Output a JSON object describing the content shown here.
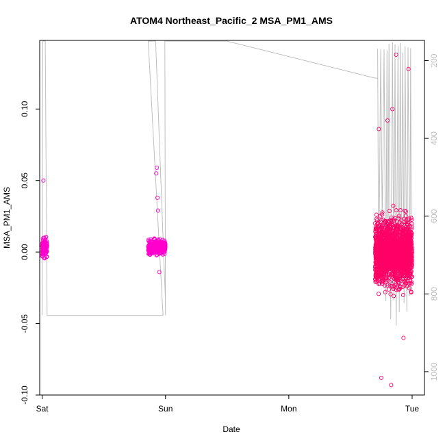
{
  "chart_data": {
    "type": "scatter",
    "title": "ATOM4 Northeast_Pacific_2 MSA_PM1_AMS",
    "xlabel": "Date",
    "ylabel": "MSA_PM1_AMS",
    "xlim": [
      -0.02,
      3.1
    ],
    "ylim": [
      -0.1,
      0.148
    ],
    "x_ticks": [
      0,
      1,
      2,
      3
    ],
    "x_tick_labels": [
      "Sat",
      "Sun",
      "Mon",
      "Tue"
    ],
    "y_ticks": [
      -0.1,
      -0.05,
      0.0,
      0.05,
      0.1
    ],
    "y_tick_labels": [
      "-0.10",
      "-0.05",
      "0.00",
      "0.05",
      "0.10"
    ],
    "right_axis": {
      "description": "altitude trace (grey line), inverted axis",
      "lim": [
        148,
        1060
      ],
      "ticks": [
        200,
        400,
        600,
        800,
        1000
      ],
      "tick_labels": [
        "200",
        "400",
        "600",
        "800",
        "1000"
      ],
      "color": "#bebebe"
    },
    "grid": false,
    "legend": "none",
    "colors": {
      "points_early": "#ff00cc",
      "points_late": "#ff0066",
      "altitude_line": "#bebebe"
    },
    "clusters": [
      {
        "x_range": [
          0.0,
          0.04
        ],
        "y_range": [
          -0.01,
          0.016
        ],
        "n": 150,
        "outliers": [
          [
            0.01,
            0.05
          ]
        ]
      },
      {
        "x_range": [
          0.86,
          1.0
        ],
        "y_range": [
          -0.008,
          0.014
        ],
        "n": 400,
        "outliers": [
          [
            0.93,
            0.059
          ],
          [
            0.925,
            0.055
          ],
          [
            0.935,
            0.038
          ],
          [
            0.94,
            0.029
          ],
          [
            0.95,
            -0.014
          ]
        ]
      },
      {
        "x_range": [
          2.7,
          3.0
        ],
        "y_range": [
          -0.05,
          0.05
        ],
        "n": 1800,
        "outliers": [
          [
            2.73,
            0.086
          ],
          [
            2.8,
            0.092
          ],
          [
            2.83,
            -0.093
          ],
          [
            2.87,
            0.138
          ],
          [
            2.97,
            0.128
          ],
          [
            2.75,
            -0.088
          ],
          [
            2.84,
            0.1
          ],
          [
            2.93,
            -0.06
          ]
        ]
      }
    ],
    "altitude": [
      [
        0.0,
        855
      ],
      [
        0.003,
        380
      ],
      [
        0.005,
        150
      ],
      [
        0.02,
        150
      ],
      [
        0.025,
        150
      ],
      [
        0.04,
        855
      ],
      [
        0.96,
        855
      ],
      [
        0.98,
        855
      ],
      [
        0.86,
        150
      ],
      [
        0.87,
        150
      ],
      [
        0.9,
        150
      ],
      [
        0.92,
        150
      ],
      [
        1.0,
        820
      ],
      [
        1.0,
        855
      ],
      [
        0.995,
        150
      ],
      [
        1.5,
        150
      ],
      [
        2.7,
        245
      ],
      [
        2.72,
        245
      ]
    ]
  }
}
